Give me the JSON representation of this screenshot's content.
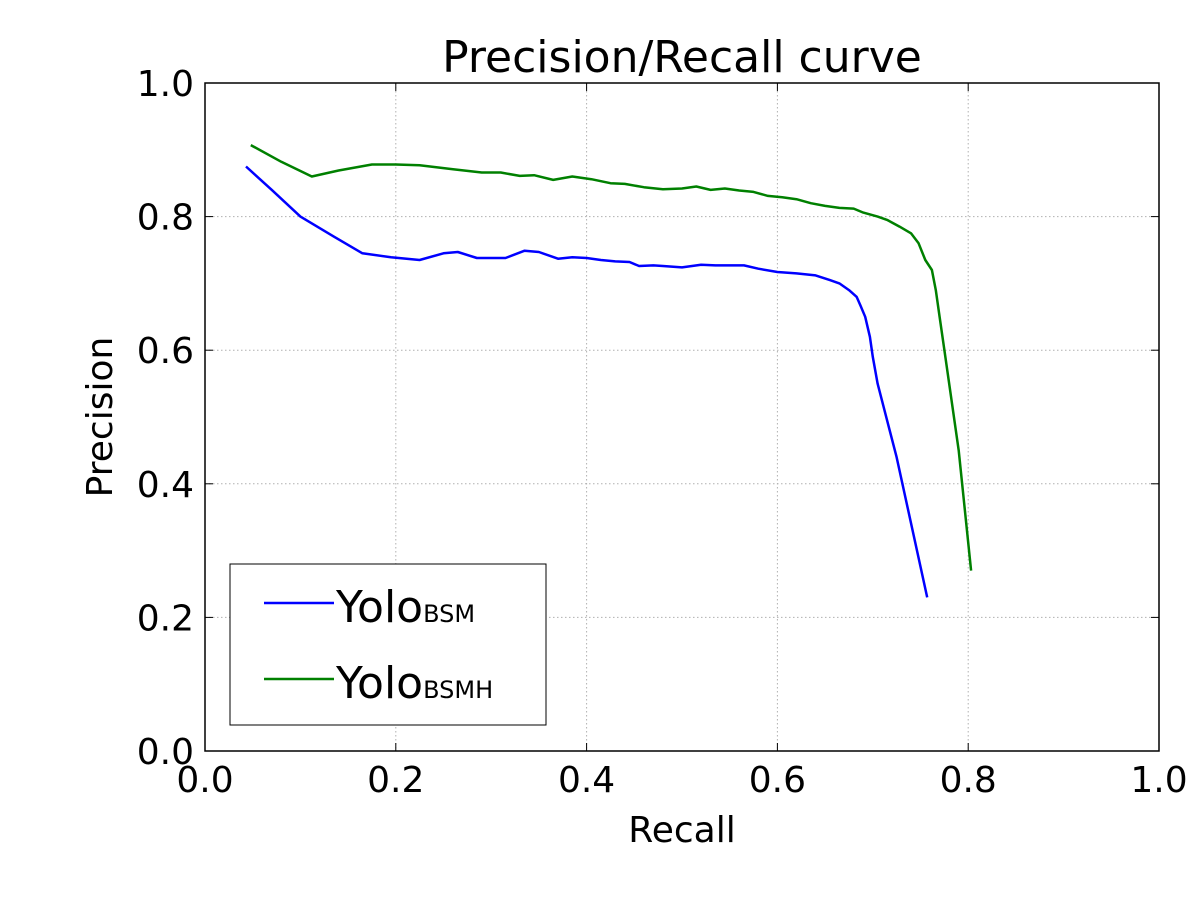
{
  "chart_data": {
    "type": "line",
    "title": "Precision/Recall curve",
    "xlabel": "Recall",
    "ylabel": "Precision",
    "xlim": [
      0.0,
      1.0
    ],
    "ylim": [
      0.0,
      1.0
    ],
    "xticks": [
      "0.0",
      "0.2",
      "0.4",
      "0.6",
      "0.8",
      "1.0"
    ],
    "yticks": [
      "0.0",
      "0.2",
      "0.4",
      "0.6",
      "0.8",
      "1.0"
    ],
    "grid": true,
    "legend_position": "lower-left",
    "series": [
      {
        "name": "Yolo",
        "name_subscript": "BSM",
        "color": "#0000ff",
        "points": [
          [
            0.043,
            0.875
          ],
          [
            0.07,
            0.84
          ],
          [
            0.1,
            0.8
          ],
          [
            0.135,
            0.77
          ],
          [
            0.165,
            0.745
          ],
          [
            0.195,
            0.739
          ],
          [
            0.225,
            0.735
          ],
          [
            0.25,
            0.745
          ],
          [
            0.265,
            0.747
          ],
          [
            0.285,
            0.738
          ],
          [
            0.3,
            0.738
          ],
          [
            0.315,
            0.738
          ],
          [
            0.335,
            0.749
          ],
          [
            0.35,
            0.747
          ],
          [
            0.37,
            0.737
          ],
          [
            0.385,
            0.739
          ],
          [
            0.4,
            0.738
          ],
          [
            0.415,
            0.735
          ],
          [
            0.43,
            0.733
          ],
          [
            0.445,
            0.732
          ],
          [
            0.455,
            0.726
          ],
          [
            0.47,
            0.727
          ],
          [
            0.48,
            0.726
          ],
          [
            0.5,
            0.724
          ],
          [
            0.52,
            0.728
          ],
          [
            0.535,
            0.727
          ],
          [
            0.55,
            0.727
          ],
          [
            0.565,
            0.727
          ],
          [
            0.58,
            0.722
          ],
          [
            0.6,
            0.717
          ],
          [
            0.62,
            0.715
          ],
          [
            0.64,
            0.712
          ],
          [
            0.655,
            0.705
          ],
          [
            0.665,
            0.7
          ],
          [
            0.675,
            0.69
          ],
          [
            0.683,
            0.68
          ],
          [
            0.687,
            0.667
          ],
          [
            0.692,
            0.65
          ],
          [
            0.697,
            0.62
          ],
          [
            0.7,
            0.59
          ],
          [
            0.705,
            0.55
          ],
          [
            0.725,
            0.44
          ],
          [
            0.757,
            0.23
          ]
        ]
      },
      {
        "name": "Yolo",
        "name_subscript": "BSMH",
        "color": "#008000",
        "points": [
          [
            0.048,
            0.907
          ],
          [
            0.08,
            0.882
          ],
          [
            0.112,
            0.86
          ],
          [
            0.14,
            0.869
          ],
          [
            0.175,
            0.878
          ],
          [
            0.2,
            0.878
          ],
          [
            0.225,
            0.877
          ],
          [
            0.26,
            0.871
          ],
          [
            0.29,
            0.866
          ],
          [
            0.31,
            0.866
          ],
          [
            0.33,
            0.861
          ],
          [
            0.345,
            0.862
          ],
          [
            0.365,
            0.855
          ],
          [
            0.385,
            0.86
          ],
          [
            0.405,
            0.856
          ],
          [
            0.425,
            0.85
          ],
          [
            0.44,
            0.849
          ],
          [
            0.46,
            0.844
          ],
          [
            0.48,
            0.841
          ],
          [
            0.5,
            0.842
          ],
          [
            0.515,
            0.845
          ],
          [
            0.53,
            0.84
          ],
          [
            0.545,
            0.842
          ],
          [
            0.56,
            0.839
          ],
          [
            0.575,
            0.837
          ],
          [
            0.59,
            0.831
          ],
          [
            0.605,
            0.829
          ],
          [
            0.62,
            0.826
          ],
          [
            0.635,
            0.82
          ],
          [
            0.65,
            0.816
          ],
          [
            0.665,
            0.813
          ],
          [
            0.68,
            0.812
          ],
          [
            0.69,
            0.806
          ],
          [
            0.705,
            0.8
          ],
          [
            0.715,
            0.795
          ],
          [
            0.728,
            0.785
          ],
          [
            0.74,
            0.775
          ],
          [
            0.748,
            0.76
          ],
          [
            0.755,
            0.735
          ],
          [
            0.762,
            0.72
          ],
          [
            0.766,
            0.69
          ],
          [
            0.77,
            0.65
          ],
          [
            0.775,
            0.6
          ],
          [
            0.79,
            0.45
          ],
          [
            0.803,
            0.27
          ]
        ]
      }
    ]
  }
}
